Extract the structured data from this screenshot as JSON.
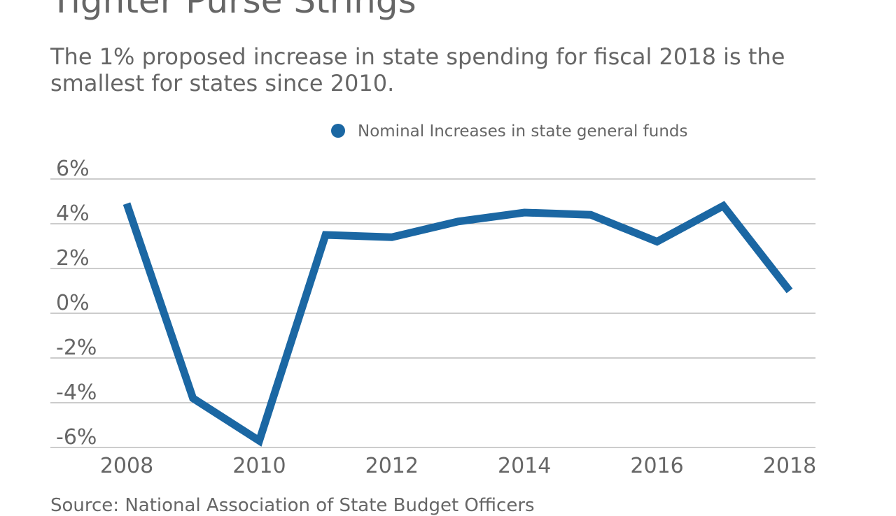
{
  "title": "Tighter Purse Strings",
  "subtitle": "The 1% proposed increase in state spending for fiscal 2018 is the smallest for states since 2010.",
  "source": "Source: National Association of State Budget Officers",
  "chart_data": {
    "type": "line",
    "title": "Tighter Purse Strings",
    "xlabel": "",
    "ylabel": "",
    "x": [
      2008,
      2009,
      2010,
      2011,
      2012,
      2013,
      2014,
      2015,
      2016,
      2017,
      2018
    ],
    "series": [
      {
        "name": "Nominal Increases in state general funds",
        "color": "#1b67a3",
        "values": [
          4.9,
          -3.8,
          -5.7,
          3.5,
          3.4,
          4.1,
          4.5,
          4.4,
          3.2,
          4.8,
          1.0
        ]
      }
    ],
    "ylim": [
      -6,
      6
    ],
    "yticks": [
      6,
      4,
      2,
      0,
      -2,
      -4,
      -6
    ],
    "ytick_labels": [
      "6%",
      "4%",
      "2%",
      "0%",
      "-2%",
      "-4%",
      "-6%"
    ],
    "xticks": [
      2008,
      2010,
      2012,
      2014,
      2016,
      2018
    ],
    "xtick_labels": [
      "2008",
      "2010",
      "2012",
      "2014",
      "2016",
      "2018"
    ],
    "grid": true,
    "legend_position": "top"
  }
}
